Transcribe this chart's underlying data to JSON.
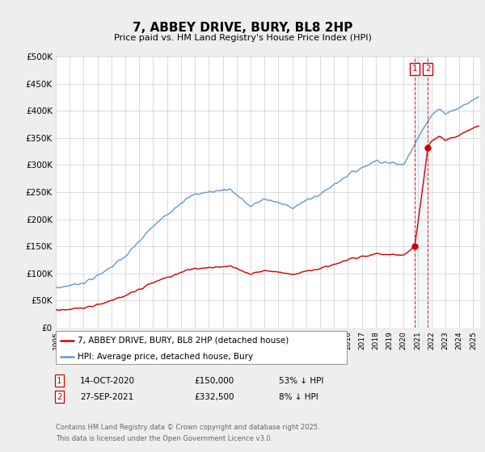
{
  "title": "7, ABBEY DRIVE, BURY, BL8 2HP",
  "subtitle": "Price paid vs. HM Land Registry's House Price Index (HPI)",
  "ylabel_ticks": [
    "£0",
    "£50K",
    "£100K",
    "£150K",
    "£200K",
    "£250K",
    "£300K",
    "£350K",
    "£400K",
    "£450K",
    "£500K"
  ],
  "ytick_values": [
    0,
    50000,
    100000,
    150000,
    200000,
    250000,
    300000,
    350000,
    400000,
    450000,
    500000
  ],
  "ylim": [
    0,
    500000
  ],
  "xlim_start": 1995,
  "xlim_end": 2025.5,
  "background_color": "#eeeeee",
  "plot_bg_color": "#ffffff",
  "grid_color": "#cccccc",
  "red_color": "#cc0000",
  "blue_color": "#6699cc",
  "transaction1_date": "14-OCT-2020",
  "transaction1_price": 150000,
  "transaction1_label": "£150,000",
  "transaction1_note": "53% ↓ HPI",
  "transaction2_date": "27-SEP-2021",
  "transaction2_price": 332500,
  "transaction2_label": "£332,500",
  "transaction2_note": "8% ↓ HPI",
  "transaction1_year": 2020.79,
  "transaction2_year": 2021.74,
  "legend_label_red": "7, ABBEY DRIVE, BURY, BL8 2HP (detached house)",
  "legend_label_blue": "HPI: Average price, detached house, Bury",
  "footer": "Contains HM Land Registry data © Crown copyright and database right 2025.\nThis data is licensed under the Open Government Licence v3.0."
}
